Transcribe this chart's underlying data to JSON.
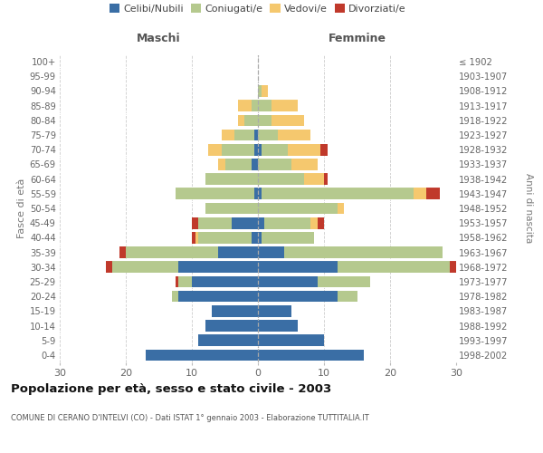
{
  "age_groups": [
    "0-4",
    "5-9",
    "10-14",
    "15-19",
    "20-24",
    "25-29",
    "30-34",
    "35-39",
    "40-44",
    "45-49",
    "50-54",
    "55-59",
    "60-64",
    "65-69",
    "70-74",
    "75-79",
    "80-84",
    "85-89",
    "90-94",
    "95-99",
    "100+"
  ],
  "birth_years": [
    "1998-2002",
    "1993-1997",
    "1988-1992",
    "1983-1987",
    "1978-1982",
    "1973-1977",
    "1968-1972",
    "1963-1967",
    "1958-1962",
    "1953-1957",
    "1948-1952",
    "1943-1947",
    "1938-1942",
    "1933-1937",
    "1928-1932",
    "1923-1927",
    "1918-1922",
    "1913-1917",
    "1908-1912",
    "1903-1907",
    "≤ 1902"
  ],
  "male": {
    "celibi": [
      17,
      9,
      8,
      7,
      12,
      10,
      12,
      6,
      1,
      4,
      0,
      0.5,
      0,
      1,
      0.5,
      0.5,
      0,
      0,
      0,
      0,
      0
    ],
    "coniugati": [
      0,
      0,
      0,
      0,
      1,
      2,
      10,
      14,
      8,
      5,
      8,
      12,
      8,
      4,
      5,
      3,
      2,
      1,
      0,
      0,
      0
    ],
    "vedovi": [
      0,
      0,
      0,
      0,
      0,
      0,
      0,
      0,
      0.5,
      0,
      0,
      0,
      0,
      1,
      2,
      2,
      1,
      2,
      0,
      0,
      0
    ],
    "divorziati": [
      0,
      0,
      0,
      0,
      0,
      0.5,
      1,
      1,
      0.5,
      1,
      0,
      0,
      0,
      0,
      0,
      0,
      0,
      0,
      0,
      0,
      0
    ]
  },
  "female": {
    "nubili": [
      16,
      10,
      6,
      5,
      12,
      9,
      12,
      4,
      0.5,
      1,
      0,
      0.5,
      0,
      0,
      0.5,
      0,
      0,
      0,
      0,
      0,
      0
    ],
    "coniugate": [
      0,
      0,
      0,
      0,
      3,
      8,
      17,
      24,
      8,
      7,
      12,
      23,
      7,
      5,
      4,
      3,
      2,
      2,
      0.5,
      0,
      0
    ],
    "vedove": [
      0,
      0,
      0,
      0,
      0,
      0,
      0,
      0,
      0,
      1,
      1,
      2,
      3,
      4,
      5,
      5,
      5,
      4,
      1,
      0,
      0
    ],
    "divorziate": [
      0,
      0,
      0,
      0,
      0,
      0,
      1,
      0,
      0,
      1,
      0,
      2,
      0.5,
      0,
      1,
      0,
      0,
      0,
      0,
      0,
      0
    ]
  },
  "colors": {
    "celibi": "#3a6ea5",
    "coniugati": "#b5c98e",
    "vedovi": "#f5c86e",
    "divorziati": "#c0392b"
  },
  "title": "Popolazione per età, sesso e stato civile - 2003",
  "subtitle": "COMUNE DI CERANO D'INTELVI (CO) - Dati ISTAT 1° gennaio 2003 - Elaborazione TUTTITALIA.IT",
  "ylabel_left": "Fasce di età",
  "ylabel_right": "Anni di nascita",
  "xlim": 30,
  "background_color": "#ffffff",
  "grid_color": "#cccccc",
  "legend_labels": [
    "Celibi/Nubili",
    "Coniugati/e",
    "Vedovi/e",
    "Divorziati/e"
  ],
  "maschi_label": "Maschi",
  "femmine_label": "Femmine"
}
